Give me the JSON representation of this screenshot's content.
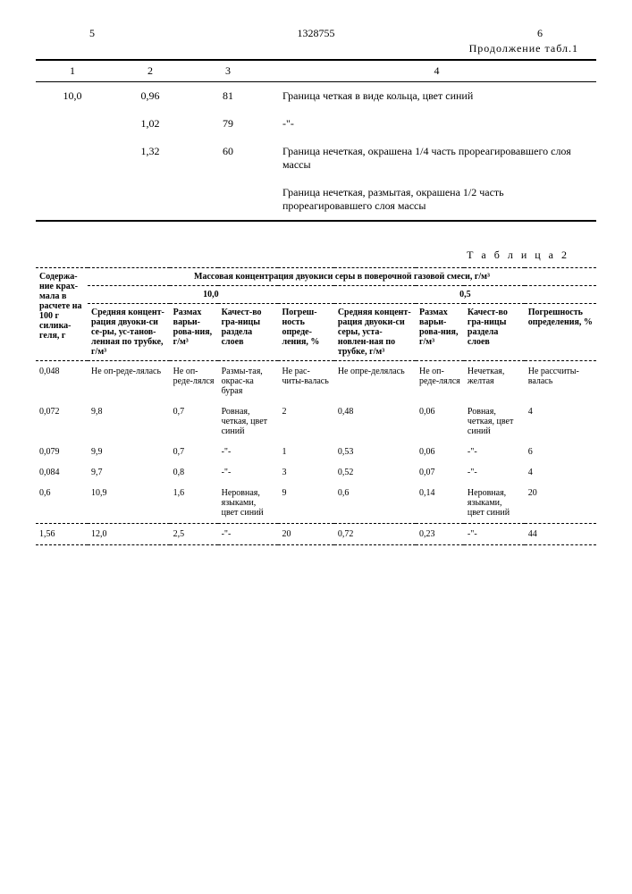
{
  "header": {
    "page_left": "5",
    "doc_number": "1328755",
    "page_right": "6",
    "continuation": "Продолжение табл.1"
  },
  "table1": {
    "columns": [
      "1",
      "2",
      "3",
      "4"
    ],
    "rows": [
      {
        "c1": "10,0",
        "c2": "0,96",
        "c3": "81",
        "c4": "Граница четкая в виде кольца, цвет синий"
      },
      {
        "c1": "",
        "c2": "1,02",
        "c3": "79",
        "c4": "-\"-"
      },
      {
        "c1": "",
        "c2": "1,32",
        "c3": "60",
        "c4": "Граница нечеткая, окрашена 1/4 часть прореагировавшего слоя массы"
      },
      {
        "c1": "",
        "c2": "",
        "c3": "",
        "c4": "Граница нечеткая, размытая, окрашена 1/2 часть прореагировавшего слоя массы"
      }
    ]
  },
  "table2": {
    "title": "Т а б л и ц а  2",
    "row_header": "Содержа-ние крах-мала в расчете на 100 г силика-геля, г",
    "group_header": "Массовая концентрация двуокиси серы в поверочной газовой смеси, г/м³",
    "group_a": "10,0",
    "group_b": "0,5",
    "sub": {
      "a1": "Средняя концент-рация двуоки-си се-ры, ус-танов-ленная по трубке, г/м³",
      "a2": "Размах варьи-рова-ния, г/м³",
      "a3": "Качест-во гра-ницы раздела слоев",
      "a4": "Погреш-ность опреде-ления, %",
      "b1": "Средняя концент-рация двуоки-си серы, уста-новлен-ная по трубке, г/м³",
      "b2": "Размах варьи-рова-ния, г/м³",
      "b3": "Качест-во гра-ницы раздела слоев",
      "b4": "Погрешность определения, %"
    },
    "rows": [
      {
        "h": "0,048",
        "a1": "Не оп-реде-лялась",
        "a2": "Не оп-реде-лялся",
        "a3": "Размы-тая, окрас-ка бурая",
        "a4": "Не рас-читы-валась",
        "b1": "Не опре-делялась",
        "b2": "Не оп-реде-лялся",
        "b3": "Нечеткая, желтая",
        "b4": "Не рассчиты-валась"
      },
      {
        "h": "0,072",
        "a1": "9,8",
        "a2": "0,7",
        "a3": "Ровная, четкая, цвет синий",
        "a4": "2",
        "b1": "0,48",
        "b2": "0,06",
        "b3": "Ровная, четкая, цвет синий",
        "b4": "4"
      },
      {
        "h": "0,079",
        "a1": "9,9",
        "a2": "0,7",
        "a3": "-\"-",
        "a4": "1",
        "b1": "0,53",
        "b2": "0,06",
        "b3": "-\"-",
        "b4": "6"
      },
      {
        "h": "0,084",
        "a1": "9,7",
        "a2": "0,8",
        "a3": "-\"-",
        "a4": "3",
        "b1": "0,52",
        "b2": "0,07",
        "b3": "-\"-",
        "b4": "4"
      },
      {
        "h": "0,6",
        "a1": "10,9",
        "a2": "1,6",
        "a3": "Неровная, языками, цвет синий",
        "a4": "9",
        "b1": "0,6",
        "b2": "0,14",
        "b3": "Неровная, языками, цвет синий",
        "b4": "20"
      },
      {
        "h": "1,56",
        "a1": "12,0",
        "a2": "2,5",
        "a3": "-\"-",
        "a4": "20",
        "b1": "0,72",
        "b2": "0,23",
        "b3": "-\"-",
        "b4": "44"
      }
    ]
  }
}
